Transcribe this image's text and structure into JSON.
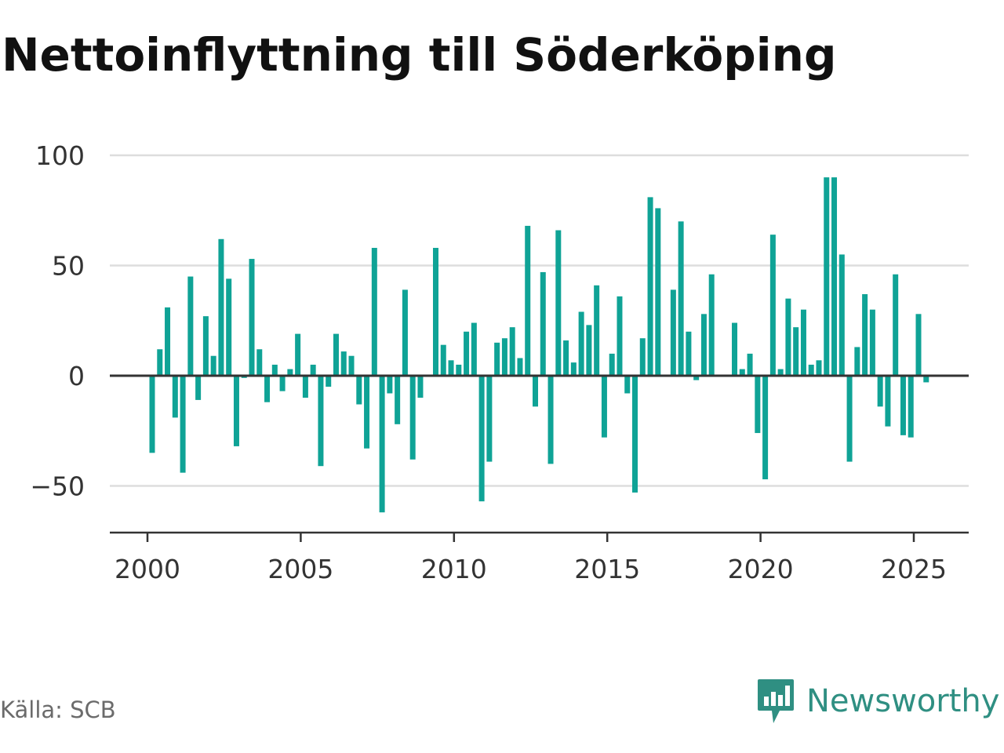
{
  "title": "Nettoinflyttning till Söderköping",
  "source": "Källa: SCB",
  "brand": {
    "name": "Newsworthy",
    "icon": "newsworthy-logo-icon",
    "color": "#2f8f82"
  },
  "colors": {
    "bar": "#0fa396",
    "grid": "#dddddd",
    "zero_line": "#333333"
  },
  "chart_data": {
    "type": "bar",
    "title": "Nettoinflyttning till Söderköping",
    "xlabel": "",
    "ylabel": "",
    "ylim": [
      -70,
      100
    ],
    "xlim": [
      1999.75,
      2026.75
    ],
    "grid": true,
    "y_ticks": [
      -50,
      0,
      50,
      100
    ],
    "y_tick_labels": [
      "−50",
      "0",
      "50",
      "100"
    ],
    "x_ticks": [
      2000,
      2005,
      2010,
      2015,
      2020,
      2025
    ],
    "x_tick_labels": [
      "2000",
      "2005",
      "2010",
      "2015",
      "2020",
      "2025"
    ],
    "series": [
      {
        "x": [
          "2000-Q1",
          "2000-Q2",
          "2000-Q3",
          "2000-Q4",
          "2001-Q1",
          "2001-Q2",
          "2001-Q3",
          "2001-Q4",
          "2002-Q1",
          "2002-Q2",
          "2002-Q3",
          "2002-Q4",
          "2003-Q1",
          "2003-Q2",
          "2003-Q3",
          "2003-Q4",
          "2004-Q1",
          "2004-Q2",
          "2004-Q3",
          "2004-Q4",
          "2005-Q1",
          "2005-Q2",
          "2005-Q3",
          "2005-Q4",
          "2006-Q1",
          "2006-Q2",
          "2006-Q3",
          "2006-Q4",
          "2007-Q1",
          "2007-Q2",
          "2007-Q3",
          "2007-Q4",
          "2008-Q1",
          "2008-Q2",
          "2008-Q3",
          "2008-Q4",
          "2009-Q1",
          "2009-Q2",
          "2009-Q3",
          "2009-Q4",
          "2010-Q1",
          "2010-Q2",
          "2010-Q3",
          "2010-Q4",
          "2011-Q1",
          "2011-Q2",
          "2011-Q3",
          "2011-Q4",
          "2012-Q1",
          "2012-Q2",
          "2012-Q3",
          "2012-Q4",
          "2013-Q1",
          "2013-Q2",
          "2013-Q3",
          "2013-Q4",
          "2014-Q1",
          "2014-Q2",
          "2014-Q3",
          "2014-Q4",
          "2015-Q1",
          "2015-Q2",
          "2015-Q3",
          "2015-Q4",
          "2016-Q1",
          "2016-Q2",
          "2016-Q3",
          "2016-Q4",
          "2017-Q1",
          "2017-Q2",
          "2017-Q3",
          "2017-Q4",
          "2018-Q1",
          "2018-Q2",
          "2018-Q3",
          "2018-Q4",
          "2019-Q1",
          "2019-Q2",
          "2019-Q3",
          "2019-Q4",
          "2020-Q1",
          "2020-Q2",
          "2020-Q3",
          "2020-Q4",
          "2021-Q1",
          "2021-Q2",
          "2021-Q3",
          "2021-Q4",
          "2022-Q1",
          "2022-Q2",
          "2022-Q3",
          "2022-Q4",
          "2023-Q1",
          "2023-Q2",
          "2023-Q3",
          "2023-Q4",
          "2024-Q1",
          "2024-Q2",
          "2024-Q3",
          "2024-Q4",
          "2025-Q1",
          "2025-Q2"
        ],
        "values": [
          -35,
          12,
          31,
          -19,
          -44,
          45,
          -11,
          27,
          9,
          62,
          44,
          -32,
          -1,
          53,
          12,
          -12,
          5,
          -7,
          3,
          19,
          -10,
          5,
          -41,
          -5,
          19,
          11,
          9,
          -13,
          -33,
          58,
          -62,
          -8,
          -22,
          39,
          -38,
          -10,
          0,
          58,
          14,
          7,
          5,
          20,
          24,
          -57,
          -39,
          15,
          17,
          22,
          8,
          68,
          -14,
          47,
          -40,
          66,
          16,
          6,
          29,
          23,
          41,
          -28,
          10,
          36,
          -8,
          -53,
          17,
          81,
          76,
          0,
          39,
          70,
          20,
          -2,
          28,
          46,
          0,
          0,
          24,
          3,
          10,
          -26,
          -47,
          64,
          3,
          35,
          22,
          30,
          5,
          7,
          90,
          90,
          55,
          -39,
          13,
          37,
          30,
          -14,
          -23,
          46,
          -27,
          -28,
          28,
          -3
        ]
      }
    ]
  }
}
